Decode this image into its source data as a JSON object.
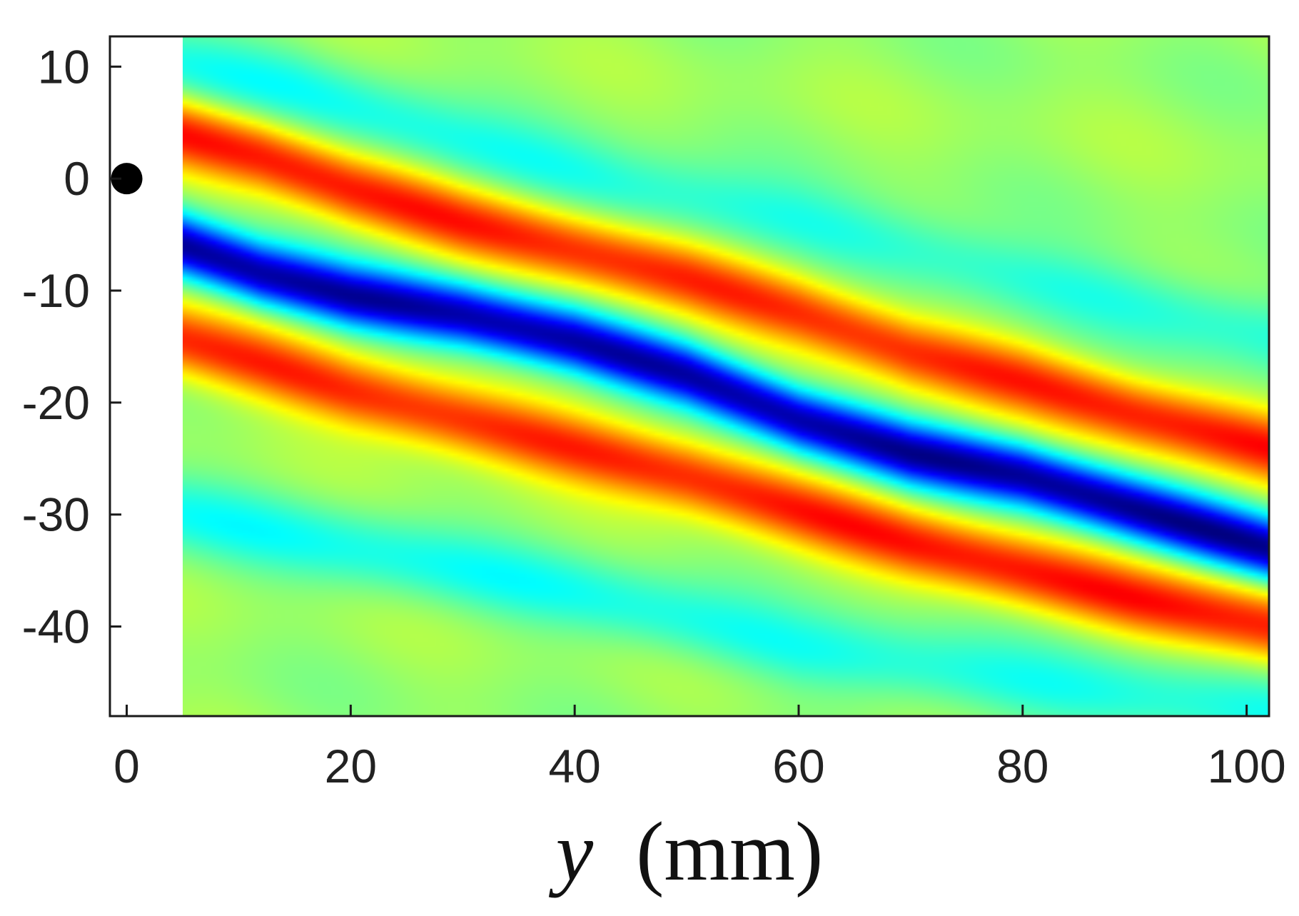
{
  "chart_data": {
    "type": "heatmap",
    "title": "",
    "xlabel": {
      "variable": "y",
      "unit": "(mm)"
    },
    "ylabel": "",
    "xlim": [
      -1.5,
      102
    ],
    "ylim": [
      -48,
      12.7
    ],
    "xticks": [
      0,
      20,
      40,
      60,
      80,
      100
    ],
    "yticks": [
      10,
      0,
      -10,
      -20,
      -30,
      -40
    ],
    "xtick_labels": [
      "0",
      "20",
      "40",
      "60",
      "80",
      "100"
    ],
    "ytick_labels": [
      "10",
      "0",
      "-10",
      "-20",
      "-30",
      "-40"
    ],
    "data_x_range": [
      5,
      102
    ],
    "colormap": "jet",
    "colormap_range": [
      -1,
      1
    ],
    "grid": false,
    "background_value": 0.05,
    "features": [
      {
        "kind": "ridge",
        "value": -1.0,
        "width_mm": 2.8,
        "path": [
          [
            5,
            -6
          ],
          [
            12,
            -8.5
          ],
          [
            20,
            -10.5
          ],
          [
            30,
            -12.2
          ],
          [
            40,
            -14.5
          ],
          [
            50,
            -17.5
          ],
          [
            60,
            -21.5
          ],
          [
            70,
            -24.5
          ],
          [
            80,
            -26.5
          ],
          [
            90,
            -29.5
          ],
          [
            102,
            -33
          ]
        ]
      },
      {
        "kind": "ridge",
        "value": 0.65,
        "width_mm": 3.2,
        "path": [
          [
            5,
            4
          ],
          [
            12,
            2
          ],
          [
            20,
            -1
          ],
          [
            30,
            -4
          ],
          [
            40,
            -6.5
          ],
          [
            50,
            -9
          ],
          [
            60,
            -12
          ],
          [
            70,
            -15.5
          ],
          [
            80,
            -18
          ],
          [
            90,
            -21
          ],
          [
            102,
            -24
          ]
        ]
      },
      {
        "kind": "ridge",
        "value": 0.65,
        "width_mm": 3.2,
        "path": [
          [
            5,
            -14.5
          ],
          [
            12,
            -16.5
          ],
          [
            20,
            -19
          ],
          [
            30,
            -21.5
          ],
          [
            40,
            -24
          ],
          [
            50,
            -26.5
          ],
          [
            60,
            -29.5
          ],
          [
            70,
            -32.5
          ],
          [
            80,
            -35
          ],
          [
            90,
            -37.5
          ],
          [
            102,
            -40
          ]
        ]
      },
      {
        "kind": "ridge",
        "value": -0.25,
        "width_mm": 3.5,
        "path": [
          [
            5,
            10
          ],
          [
            15,
            8
          ],
          [
            30,
            3
          ],
          [
            45,
            -1
          ],
          [
            60,
            -4
          ],
          [
            80,
            -9
          ],
          [
            102,
            -14
          ]
        ]
      },
      {
        "kind": "ridge",
        "value": -0.25,
        "width_mm": 3.5,
        "path": [
          [
            5,
            -30
          ],
          [
            20,
            -33
          ],
          [
            40,
            -37
          ],
          [
            60,
            -42
          ],
          [
            80,
            -45
          ],
          [
            102,
            -48
          ]
        ]
      }
    ],
    "marker": {
      "x": 0,
      "y": 0,
      "shape": "filled-circle",
      "color": "#000000"
    },
    "colors": {
      "frame": "#1a1a1a",
      "marker": "#000000",
      "blank_region": "#ffffff"
    }
  }
}
